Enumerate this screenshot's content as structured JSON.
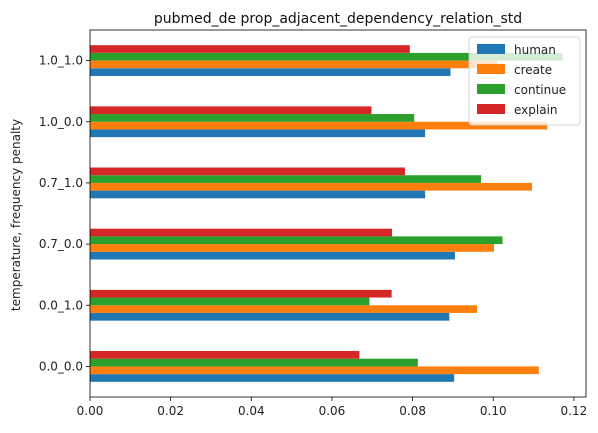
{
  "chart_data": {
    "type": "bar",
    "orientation": "horizontal",
    "title": "pubmed_de prop_adjacent_dependency_relation_std",
    "ylabel": "temperature, frequency penalty",
    "xlabel": "",
    "categories": [
      "0.0_0.0",
      "0.0_1.0",
      "0.7_0.0",
      "0.7_1.0",
      "1.0_0.0",
      "1.0_1.0"
    ],
    "xlim": [
      0,
      0.123
    ],
    "xticks": [
      0.0,
      0.02,
      0.04,
      0.06,
      0.08,
      0.1,
      0.12
    ],
    "xtick_labels": [
      "0.00",
      "0.02",
      "0.04",
      "0.06",
      "0.08",
      "0.10",
      "0.12"
    ],
    "series": [
      {
        "name": "human",
        "color": "#1f77b4",
        "values": [
          0.0903,
          0.0891,
          0.0905,
          0.0831,
          0.0831,
          0.0894
        ]
      },
      {
        "name": "create",
        "color": "#ff7f0e",
        "values": [
          0.1113,
          0.096,
          0.1002,
          0.1096,
          0.1134,
          0.101
        ]
      },
      {
        "name": "continue",
        "color": "#2ca02c",
        "values": [
          0.0813,
          0.0693,
          0.1023,
          0.097,
          0.0804,
          0.1172
        ]
      },
      {
        "name": "explain",
        "color": "#d62728",
        "values": [
          0.0668,
          0.0748,
          0.0749,
          0.0781,
          0.0698,
          0.0793
        ]
      }
    ],
    "legend": {
      "position": "top-right",
      "entries": [
        "human",
        "create",
        "continue",
        "explain"
      ]
    },
    "grid": false
  }
}
